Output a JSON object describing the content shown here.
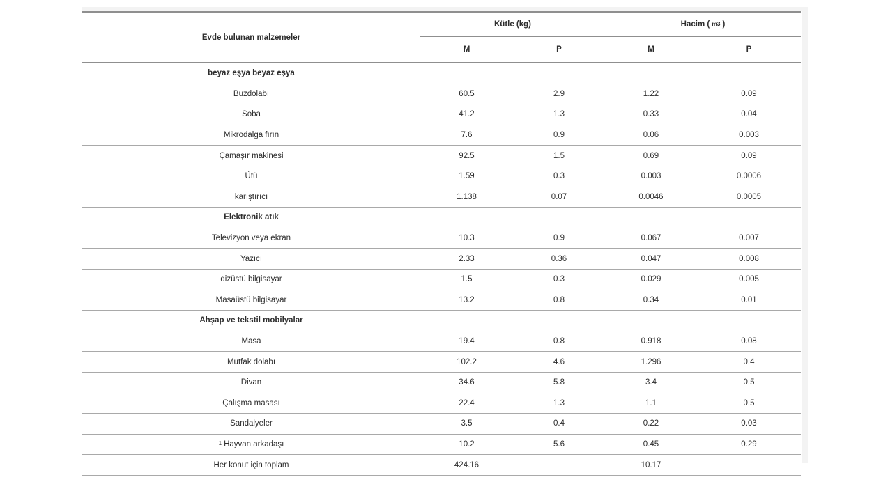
{
  "page": {
    "background": "#ffffff",
    "margin_strip_color": "#f3f3f3"
  },
  "table": {
    "colors": {
      "text": "#2d2d2d",
      "header_line": "#8f8f8f",
      "row_line": "#a9a9a9"
    },
    "first_column_header": "Evde bulunan malzemeler",
    "column_groups": [
      {
        "label": "Kütle (kg)",
        "subcolumns": [
          "M",
          "P"
        ]
      },
      {
        "label_prefix": "Hacim (",
        "label_sup": "m3",
        "label_suffix": ")",
        "subcolumns": [
          "M",
          "P"
        ]
      }
    ],
    "rows": [
      {
        "type": "section",
        "label": "beyaz eşya beyaz eşya"
      },
      {
        "type": "item",
        "label": "Buzdolabı",
        "values": [
          "60.5",
          "2.9",
          "1.22",
          "0.09"
        ]
      },
      {
        "type": "item",
        "label": "Soba",
        "values": [
          "41.2",
          "1.3",
          "0.33",
          "0.04"
        ]
      },
      {
        "type": "item",
        "label": "Mikrodalga fırın",
        "values": [
          "7.6",
          "0.9",
          "0.06",
          "0.003"
        ]
      },
      {
        "type": "item",
        "label": "Çamaşır makinesi",
        "values": [
          "92.5",
          "1.5",
          "0.69",
          "0.09"
        ]
      },
      {
        "type": "item",
        "label": "Ütü",
        "values": [
          "1.59",
          "0.3",
          "0.003",
          "0.0006"
        ]
      },
      {
        "type": "item",
        "label": "karıştırıcı",
        "values": [
          "1.138",
          "0.07",
          "0.0046",
          "0.0005"
        ]
      },
      {
        "type": "section",
        "label": "Elektronik atık"
      },
      {
        "type": "item",
        "label": "Televizyon veya ekran",
        "values": [
          "10.3",
          "0.9",
          "0.067",
          "0.007"
        ]
      },
      {
        "type": "item",
        "label": "Yazıcı",
        "values": [
          "2.33",
          "0.36",
          "0.047",
          "0.008"
        ]
      },
      {
        "type": "item",
        "label": "dizüstü bilgisayar",
        "values": [
          "1.5",
          "0.3",
          "0.029",
          "0.005"
        ]
      },
      {
        "type": "item",
        "label": "Masaüstü bilgisayar",
        "values": [
          "13.2",
          "0.8",
          "0.34",
          "0.01"
        ]
      },
      {
        "type": "section",
        "label": "Ahşap ve tekstil mobilyalar"
      },
      {
        "type": "item",
        "label": "Masa",
        "values": [
          "19.4",
          "0.8",
          "0.918",
          "0.08"
        ]
      },
      {
        "type": "item",
        "label": "Mutfak dolabı",
        "values": [
          "102.2",
          "4.6",
          "1.296",
          "0.4"
        ]
      },
      {
        "type": "item",
        "label": "Divan",
        "values": [
          "34.6",
          "5.8",
          "3.4",
          "0.5"
        ]
      },
      {
        "type": "item",
        "label": "Çalışma masası",
        "values": [
          "22.4",
          "1.3",
          "1.1",
          "0.5"
        ]
      },
      {
        "type": "item",
        "label": "Sandalyeler",
        "values": [
          "3.5",
          "0.4",
          "0.22",
          "0.03"
        ]
      },
      {
        "type": "item",
        "label_sup": "1",
        "label": "Hayvan arkadaşı",
        "values": [
          "10.2",
          "5.6",
          "0.45",
          "0.29"
        ]
      },
      {
        "type": "total",
        "label": "Her konut için toplam",
        "values": [
          "424.16",
          "",
          "10.17",
          ""
        ]
      }
    ]
  }
}
